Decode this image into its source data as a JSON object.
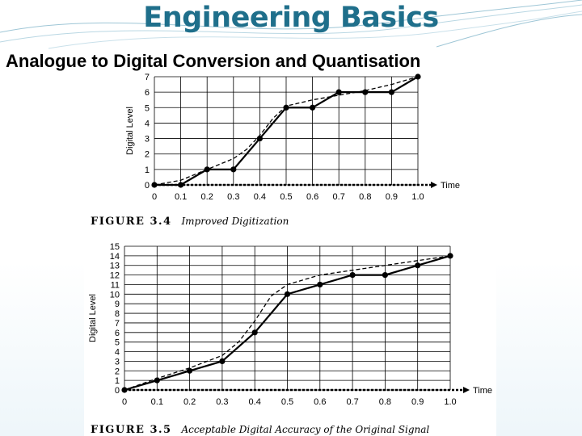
{
  "slide": {
    "title": "Engineering Basics",
    "subtitle": "Analogue to Digital Conversion and Quantisation"
  },
  "chart_data": [
    {
      "type": "line",
      "caption_label": "FIGURE 3.4",
      "caption_text": "Improved Digitization",
      "xlabel": "Time",
      "ylabel": "Digital Level",
      "x": [
        0,
        0.1,
        0.2,
        0.3,
        0.4,
        0.5,
        0.6,
        0.7,
        0.8,
        0.9,
        1.0
      ],
      "x_ticks": [
        "0",
        "0.1",
        "0.2",
        "0.3",
        "0.4",
        "0.5",
        "0.6",
        "0.7",
        "0.8",
        "0.9",
        "1.0"
      ],
      "y_ticks": [
        "0",
        "1",
        "2",
        "3",
        "4",
        "5",
        "6",
        "7"
      ],
      "xlim": [
        0,
        1.0
      ],
      "ylim": [
        0,
        7
      ],
      "grid": true,
      "series": [
        {
          "style": "solid-markers",
          "values": [
            0,
            0,
            1,
            1,
            3,
            5,
            5,
            6,
            6,
            6,
            7
          ]
        },
        {
          "style": "dashed",
          "x": [
            0,
            0.1,
            0.2,
            0.3,
            0.35,
            0.4,
            0.45,
            0.5,
            0.6,
            0.7,
            0.8,
            0.9,
            1.0
          ],
          "values": [
            0,
            0.3,
            1.0,
            1.7,
            2.3,
            3.2,
            4.3,
            5.1,
            5.5,
            5.8,
            6.1,
            6.5,
            7.0
          ]
        }
      ]
    },
    {
      "type": "line",
      "caption_label": "FIGURE 3.5",
      "caption_text": "Acceptable Digital Accuracy of the Original Signal",
      "xlabel": "Time",
      "ylabel": "Digital Level",
      "x": [
        0,
        0.1,
        0.2,
        0.3,
        0.4,
        0.5,
        0.6,
        0.7,
        0.8,
        0.9,
        1.0
      ],
      "x_ticks": [
        "0",
        "0.1",
        "0.2",
        "0.3",
        "0.4",
        "0.5",
        "0.6",
        "0.7",
        "0.8",
        "0.9",
        "1.0"
      ],
      "y_ticks": [
        "0",
        "1",
        "2",
        "3",
        "4",
        "5",
        "6",
        "7",
        "8",
        "9",
        "10",
        "11",
        "12",
        "13",
        "14",
        "15"
      ],
      "xlim": [
        0,
        1.0
      ],
      "ylim": [
        0,
        15
      ],
      "grid": true,
      "series": [
        {
          "style": "solid-markers",
          "values": [
            0,
            1,
            2,
            3,
            6,
            10,
            11,
            12,
            12,
            13,
            14
          ]
        },
        {
          "style": "dashed",
          "x": [
            0,
            0.1,
            0.2,
            0.3,
            0.35,
            0.4,
            0.45,
            0.5,
            0.6,
            0.7,
            0.8,
            0.9,
            1.0
          ],
          "values": [
            0,
            1.2,
            2.3,
            3.6,
            5.0,
            7.2,
            9.8,
            11.0,
            12.0,
            12.5,
            13.0,
            13.5,
            14.0
          ]
        }
      ]
    }
  ]
}
